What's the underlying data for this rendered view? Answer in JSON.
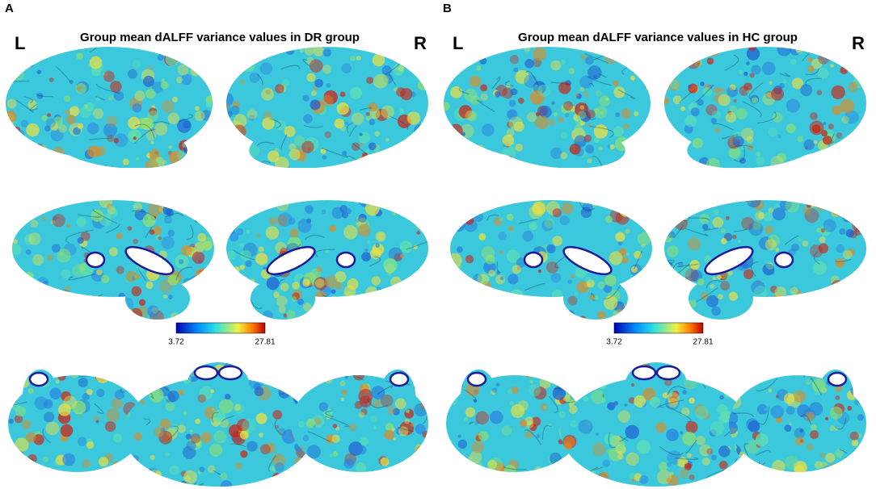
{
  "panels": [
    {
      "label": "A",
      "title": "Group mean dALFF variance values in DR group",
      "left": "L",
      "right": "R",
      "colorbar": {
        "min": 3.72,
        "max": 27.81
      }
    },
    {
      "label": "B",
      "title": "Group mean dALFF variance values in HC group",
      "left": "L",
      "right": "R",
      "colorbar": {
        "min": 3.72,
        "max": 27.81
      }
    }
  ]
}
